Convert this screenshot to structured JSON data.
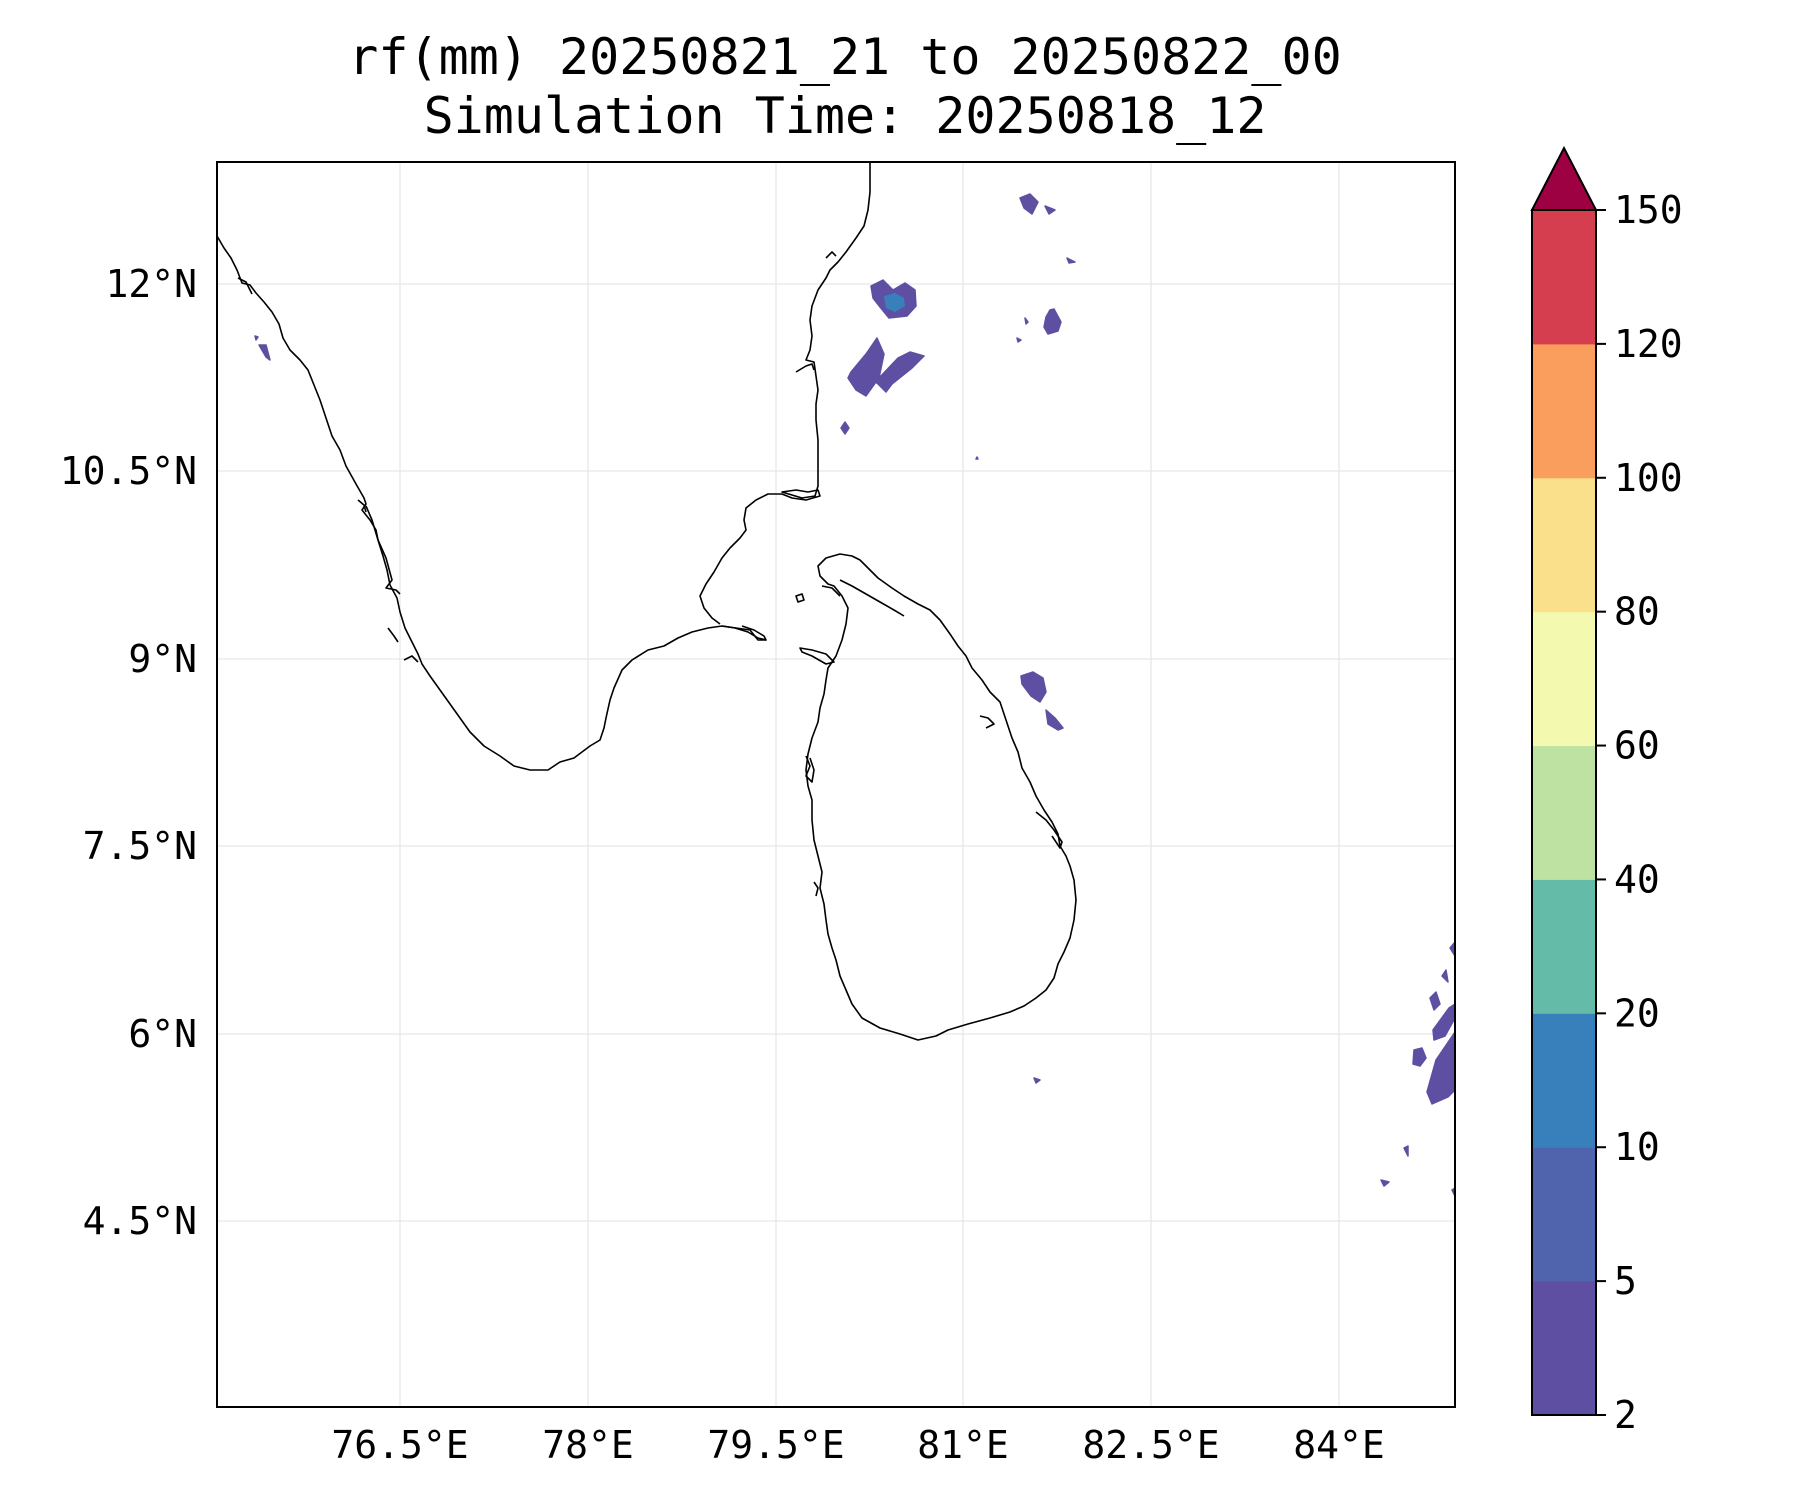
{
  "title": {
    "line1": "rf(mm) 20250821_21 to 20250822_00",
    "line2": "Simulation Time: 20250818_12"
  },
  "map": {
    "lon_ticks": [
      "76.5°E",
      "78°E",
      "79.5°E",
      "81°E",
      "82.5°E",
      "84°E"
    ],
    "lat_ticks": [
      "12°N",
      "10.5°N",
      "9°N",
      "7.5°N",
      "6°N",
      "4.5°N"
    ],
    "coastline_color": "#000000",
    "grid": true,
    "grid_color": "#e6e6e6"
  },
  "rain": {
    "dominant_class": "2-5",
    "fill_color": "#5e4fa2",
    "secondary_color": "#3288bd"
  },
  "colorbar": {
    "levels": [
      "2",
      "5",
      "10",
      "20",
      "40",
      "60",
      "80",
      "100",
      "120",
      "150"
    ],
    "colors": [
      "#5e4fa2",
      "#4f64ad",
      "#3880bb",
      "#63bba8",
      "#bde2a1",
      "#f3f9ae",
      "#fbe08c",
      "#f99e5d",
      "#d53e4f"
    ],
    "extend_color": "#9e0142",
    "extend": "max"
  }
}
